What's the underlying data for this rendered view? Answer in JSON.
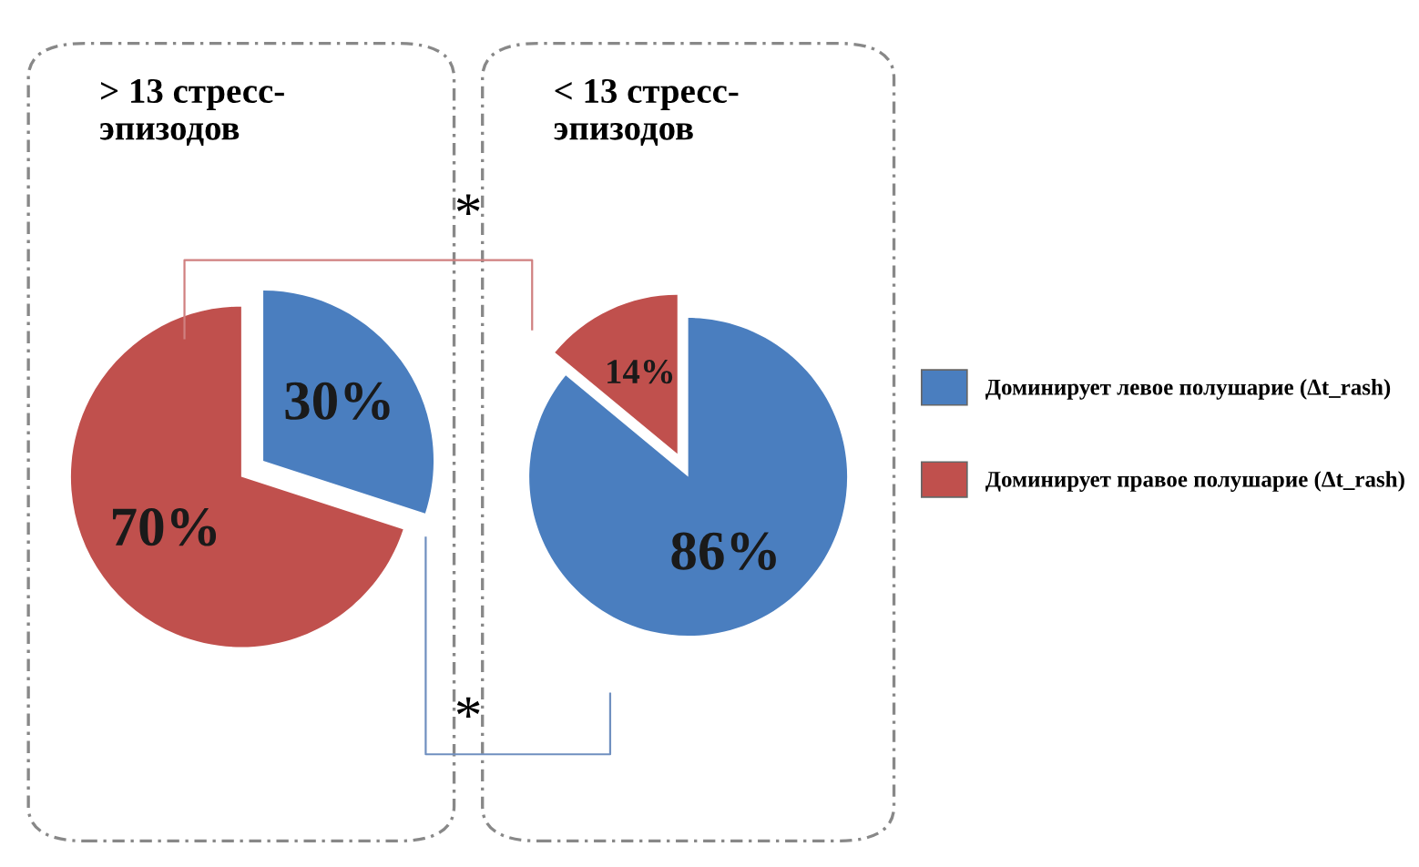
{
  "chart_data": [
    {
      "type": "pie",
      "title": "> 13 стресс-\nэпизодов",
      "categories": [
        "Доминирует левое полушарие (Δt_rash)",
        "Доминирует правое полушарие (Δt_rash)"
      ],
      "values": [
        30,
        70
      ],
      "colors": [
        "#4a7ebf",
        "#c0504d"
      ],
      "value_labels": [
        "30%",
        "70%"
      ],
      "legend": "right",
      "annotations": [
        "*",
        "*"
      ]
    },
    {
      "type": "pie",
      "title": "< 13 стресс-\nэпизодов",
      "values": [
        86,
        14
      ],
      "colors": [
        "#4a7ebf",
        "#c0504d"
      ],
      "value_labels": [
        "86%",
        "14%"
      ]
    }
  ]
}
